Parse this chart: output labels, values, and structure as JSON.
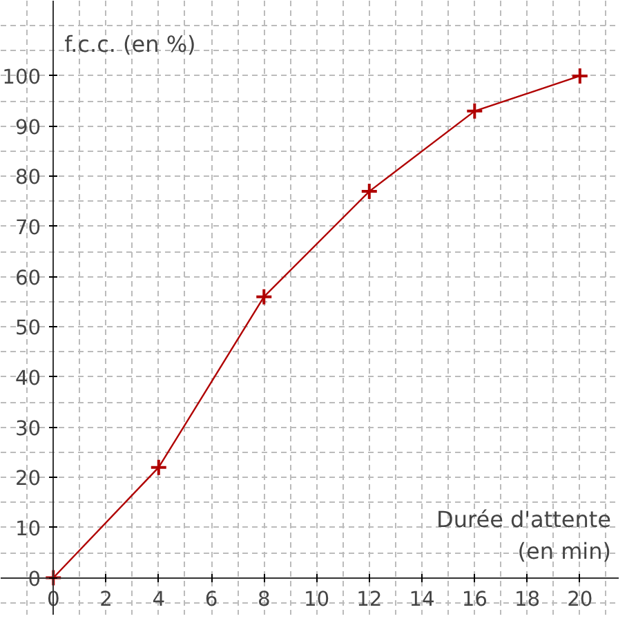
{
  "chart_data": {
    "type": "line",
    "xlabel": "Durée d'attente\n(en min)",
    "ylabel": "f.c.c. (en %)",
    "x": [
      0,
      4,
      8,
      12,
      16,
      20
    ],
    "series": [
      {
        "color": "#b00000",
        "values": [
          0,
          22,
          56,
          77,
          93,
          100
        ]
      }
    ],
    "xlim": [
      -2,
      21.5
    ],
    "ylim": [
      -7.5,
      115
    ],
    "xticks": [
      0,
      2,
      4,
      6,
      8,
      10,
      12,
      14,
      16,
      18,
      20
    ],
    "yticks": [
      0,
      10,
      20,
      30,
      40,
      50,
      60,
      70,
      80,
      90,
      100
    ],
    "grid": true,
    "marker": "cross",
    "line_style": "solid"
  }
}
